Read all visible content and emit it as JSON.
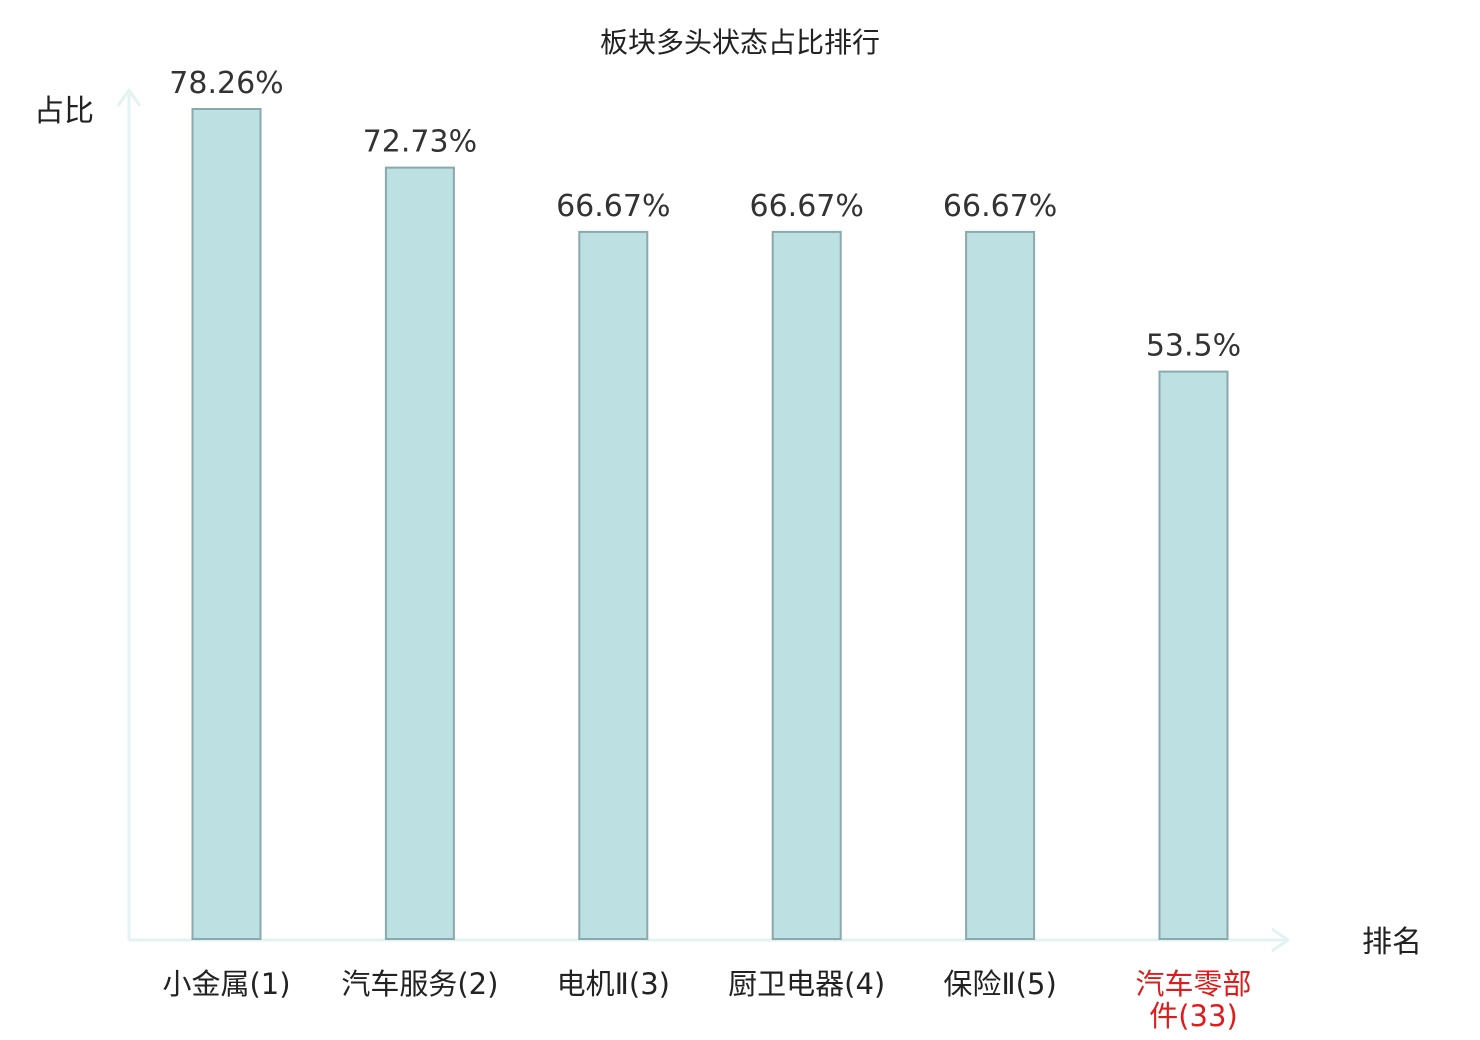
{
  "chart_data": {
    "type": "bar",
    "title": "板块多头状态占比排行",
    "ylabel": "占比",
    "xlabel": "排名",
    "categories": [
      "小金属(1)",
      "汽车服务(2)",
      "电机Ⅱ(3)",
      "厨卫电器(4)",
      "保险Ⅱ(5)",
      "汽车零部件(33)"
    ],
    "category_lines": [
      [
        "小金属(1)"
      ],
      [
        "汽车服务(2)"
      ],
      [
        "电机Ⅱ(3)"
      ],
      [
        "厨卫电器(4)"
      ],
      [
        "保险Ⅱ(5)"
      ],
      [
        "汽车零部",
        "件(33)"
      ]
    ],
    "values": [
      78.26,
      72.73,
      66.67,
      66.67,
      66.67,
      53.5
    ],
    "value_labels": [
      "78.26%",
      "72.73%",
      "66.67%",
      "66.67%",
      "66.67%",
      "53.5%"
    ],
    "highlight_index": 5,
    "ylim": [
      0,
      80
    ],
    "grid": false,
    "colors": {
      "bar_fill": "#bde0e3",
      "bar_stroke": "#8aa9ad",
      "axis": "#e2f3f1",
      "label": "#222222",
      "value_label": "#333333",
      "highlight": "#e01b1b"
    }
  }
}
